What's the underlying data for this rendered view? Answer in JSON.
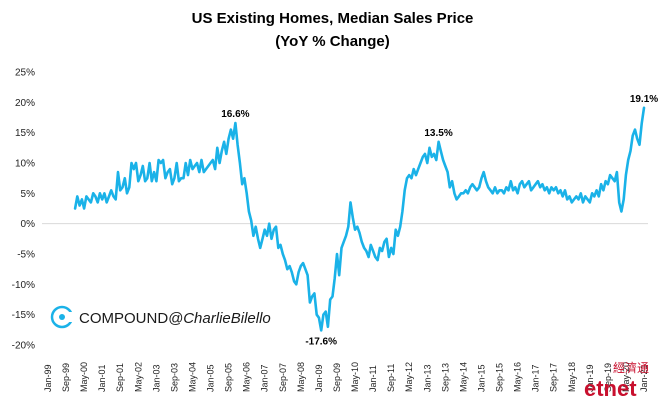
{
  "chart_data": {
    "type": "line",
    "title_line1": "US Existing Homes, Median Sales Price",
    "title_line2": "(YoY % Change)",
    "xlabel": "",
    "ylabel": "",
    "ylim": [
      -20,
      25
    ],
    "yticks": [
      "-20%",
      "-15%",
      "-10%",
      "-5%",
      "0%",
      "5%",
      "10%",
      "15%",
      "20%",
      "25%"
    ],
    "xticks": [
      "Jan-99",
      "Sep-99",
      "May-00",
      "Jan-01",
      "Sep-01",
      "May-02",
      "Jan-03",
      "Sep-03",
      "May-04",
      "Jan-05",
      "Sep-05",
      "May-06",
      "Jan-07",
      "Sep-07",
      "May-08",
      "Jan-09",
      "Sep-09",
      "May-10",
      "Jan-11",
      "Sep-11",
      "May-12",
      "Jan-13",
      "Sep-13",
      "May-14",
      "Jan-15",
      "Sep-15",
      "May-16",
      "Jan-17",
      "Sep-17",
      "May-18",
      "Jan-19",
      "Sep-19",
      "May-20",
      "Jan-21"
    ],
    "grid": false,
    "line_color": "#1ab2e8",
    "series": [
      {
        "start": "2000-01",
        "frequency": "monthly",
        "values": [
          2.5,
          4.5,
          3.0,
          4.0,
          2.5,
          4.5,
          4.0,
          3.5,
          5.0,
          4.5,
          3.5,
          5.0,
          4.0,
          5.0,
          3.5,
          4.5,
          5.5,
          4.5,
          4.0,
          8.5,
          5.5,
          6.0,
          7.5,
          5.0,
          6.0,
          10.0,
          9.0,
          10.0,
          7.0,
          8.0,
          9.5,
          7.0,
          7.5,
          10.0,
          7.0,
          8.5,
          7.0,
          10.5,
          10.0,
          10.5,
          7.5,
          8.5,
          9.0,
          6.5,
          7.5,
          10.0,
          7.0,
          7.5,
          7.5,
          10.0,
          8.0,
          10.5,
          9.0,
          9.5,
          10.0,
          8.5,
          10.5,
          8.5,
          9.0,
          9.5,
          10.0,
          10.5,
          9.0,
          12.5,
          10.0,
          12.0,
          13.5,
          11.5,
          14.0,
          15.5,
          14.0,
          16.6,
          13.0,
          10.0,
          6.5,
          7.5,
          5.0,
          2.0,
          0.5,
          -2.0,
          -0.5,
          -2.5,
          -4.0,
          -2.5,
          -1.0,
          -2.0,
          0.0,
          -2.5,
          -1.0,
          -0.5,
          -4.0,
          -3.5,
          -5.0,
          -6.0,
          -7.5,
          -7.0,
          -8.0,
          -9.5,
          -10.0,
          -8.0,
          -7.0,
          -6.5,
          -7.5,
          -8.5,
          -13.0,
          -12.0,
          -11.5,
          -15.0,
          -15.5,
          -17.6,
          -15.0,
          -14.5,
          -17.0,
          -12.5,
          -12.0,
          -9.0,
          -5.0,
          -8.5,
          -4.0,
          -3.0,
          -2.0,
          -0.5,
          3.5,
          1.0,
          -1.0,
          -0.5,
          -1.5,
          -3.0,
          -4.0,
          -4.5,
          -5.5,
          -3.5,
          -4.5,
          -5.5,
          -6.0,
          -4.0,
          -4.5,
          -3.0,
          -2.5,
          -5.5,
          -4.0,
          -5.0,
          -1.0,
          -2.0,
          -0.5,
          2.0,
          5.5,
          7.5,
          8.0,
          7.5,
          9.0,
          8.0,
          9.0,
          10.0,
          11.0,
          11.5,
          10.0,
          12.5,
          11.0,
          11.5,
          10.5,
          13.5,
          12.0,
          10.5,
          9.5,
          8.5,
          6.0,
          7.0,
          5.0,
          4.0,
          4.5,
          5.0,
          5.0,
          5.5,
          5.0,
          6.0,
          6.5,
          6.0,
          5.5,
          6.0,
          7.5,
          8.5,
          7.0,
          6.0,
          5.5,
          5.0,
          6.0,
          5.0,
          5.5,
          5.5,
          5.0,
          6.0,
          5.5,
          7.0,
          5.5,
          6.0,
          5.0,
          6.5,
          7.0,
          6.0,
          6.5,
          7.0,
          5.5,
          6.0,
          6.5,
          7.0,
          6.0,
          6.5,
          5.5,
          6.0,
          5.0,
          6.0,
          5.5,
          6.0,
          5.0,
          5.5,
          4.5,
          5.5,
          4.0,
          4.5,
          3.5,
          4.0,
          4.5,
          4.0,
          5.0,
          3.5,
          4.5,
          4.0,
          3.5,
          5.0,
          4.5,
          5.5,
          4.5,
          6.5,
          5.5,
          7.0,
          6.5,
          8.0,
          7.5,
          7.0,
          8.5,
          3.5,
          2.0,
          4.0,
          8.0,
          10.5,
          12.0,
          14.5,
          15.5,
          14.0,
          13.0,
          16.5,
          19.1
        ]
      }
    ],
    "annotations": [
      {
        "label": "16.6%",
        "index": 71,
        "value": 16.6,
        "position": "above"
      },
      {
        "label": "-17.6%",
        "index": 109,
        "value": -17.6,
        "position": "below"
      },
      {
        "label": "13.5%",
        "index": 161,
        "value": 13.5,
        "position": "above"
      },
      {
        "label": "19.1%",
        "index": 252,
        "value": 19.1,
        "position": "above"
      }
    ]
  },
  "watermark": {
    "brand": "COMPOUND",
    "handle": "@CharlieBilello",
    "brand_color": "#1ab2e8",
    "text_color": "#1a1a1a"
  },
  "corner_logo": {
    "text": "etnet",
    "chinese": "經濟通",
    "color": "#c8102e"
  }
}
